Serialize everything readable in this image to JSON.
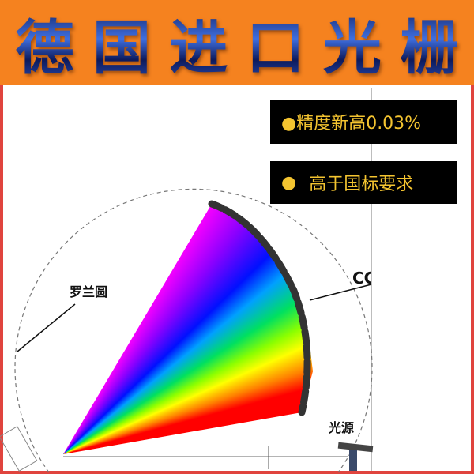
{
  "header": {
    "title_chars": [
      "德",
      "国",
      "进",
      "口",
      "光",
      "栅"
    ]
  },
  "badges": [
    {
      "text": "●精度新高0.03%"
    },
    {
      "dot": "●",
      "text": "高于国标要求"
    }
  ],
  "diagram": {
    "rowland_label": "罗兰圆",
    "ccd_label": "CC",
    "source_label": "光源"
  },
  "colors": {
    "header_bg": "#f5821f",
    "border": "#e0443e",
    "badge_bg": "#000000",
    "badge_text": "#f4c430"
  }
}
